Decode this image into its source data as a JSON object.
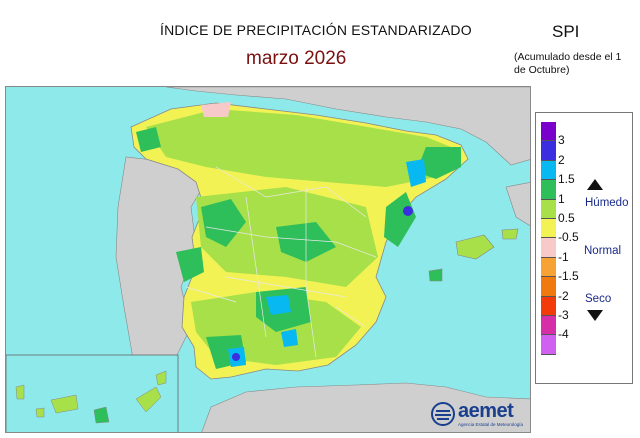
{
  "title": "ÍNDICE DE PRECIPITACIÓN ESTANDARIZADO",
  "subtitle": "marzo  2026",
  "index_label": "SPI",
  "note": "(Acumulado desde el 1 de Octubre)",
  "legend": {
    "colors": [
      "#7a00cc",
      "#3b2de0",
      "#08b8f0",
      "#2fbf5a",
      "#a8e04a",
      "#f2f255",
      "#f7c9c9",
      "#f7a235",
      "#f07a10",
      "#f23a0a",
      "#d62ea8",
      "#d060f0"
    ],
    "ticks": [
      "3",
      "2",
      "1.5",
      "1",
      "0.5",
      "-0.5",
      "-1",
      "-1.5",
      "-2",
      "-3",
      "-4"
    ],
    "wet_label": "Húmedo",
    "normal_label": "Normal",
    "dry_label": "Seco"
  },
  "logo": {
    "name": "aemet",
    "sub": "Agencia Estatal de Meteorología"
  },
  "map_colors": {
    "sea": "#8ee9ea",
    "land_outside": "#cfcfcf",
    "normal": "#f2f255",
    "slight_wet": "#a8e04a",
    "wet": "#2fbf5a",
    "very_wet": "#08b8f0",
    "extreme_wet": "#3b2de0",
    "slight_dry": "#f7c9c9"
  }
}
